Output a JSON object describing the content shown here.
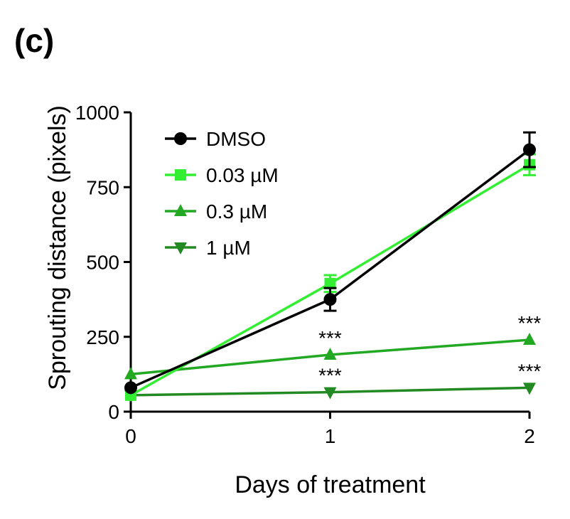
{
  "panel_label": "(c)",
  "chart_data": {
    "type": "line",
    "title": "",
    "xlabel": "Days of treatment",
    "ylabel": "Sprouting distance (pixels)",
    "x": [
      0,
      1,
      2
    ],
    "x_ticks": [
      "0",
      "1",
      "2"
    ],
    "xlim": [
      0,
      2
    ],
    "ylim": [
      0,
      1000
    ],
    "y_ticks": [
      "0",
      "250",
      "500",
      "750",
      "1000"
    ],
    "grid": false,
    "legend_position": "top-left",
    "series": [
      {
        "name": "DMSO",
        "marker": "circle",
        "color": "#000000",
        "values": [
          80,
          375,
          875
        ],
        "errors": [
          0,
          38,
          58
        ]
      },
      {
        "name": "0.03 µM",
        "marker": "square",
        "color": "#33ee33",
        "values": [
          55,
          428,
          825
        ],
        "errors": [
          0,
          28,
          35
        ]
      },
      {
        "name": "0.3 µM",
        "marker": "triangle-up",
        "color": "#22a822",
        "values": [
          125,
          190,
          240
        ],
        "errors": [
          0,
          0,
          0
        ]
      },
      {
        "name": "1 µM",
        "marker": "triangle-down",
        "color": "#238a23",
        "values": [
          55,
          65,
          80
        ],
        "errors": [
          0,
          0,
          0
        ]
      }
    ],
    "annotations": [
      {
        "text": "***",
        "x": 1,
        "y": 190
      },
      {
        "text": "***",
        "x": 2,
        "y": 240
      },
      {
        "text": "***",
        "x": 1,
        "y": 65
      },
      {
        "text": "***",
        "x": 2,
        "y": 80
      }
    ]
  }
}
